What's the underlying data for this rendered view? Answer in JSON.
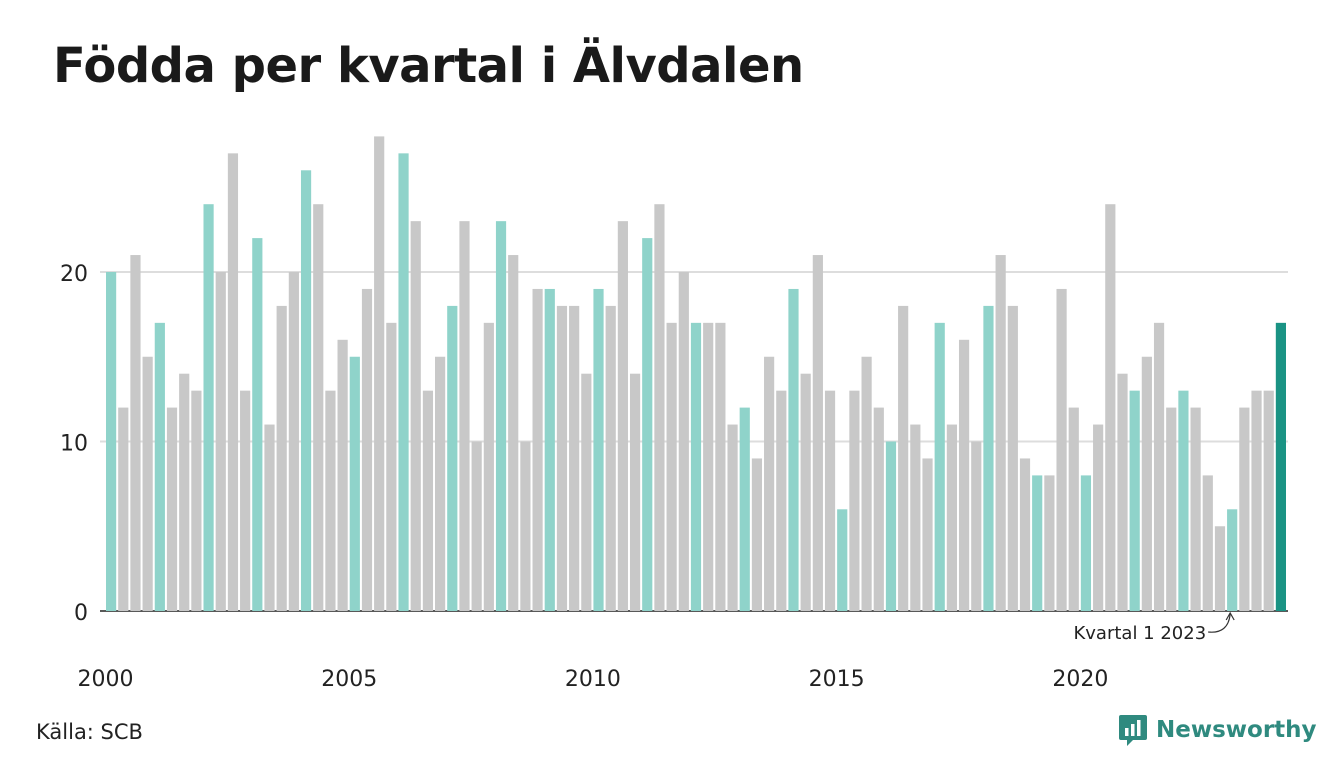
{
  "title": "Födda per kvartal i Älvdalen",
  "source": "Källa: SCB",
  "brand": {
    "name": "Newsworthy",
    "icon": "newsworthy-logo-icon"
  },
  "colors": {
    "q1": "#8fd3ca",
    "other": "#c8c8c8",
    "latest": "#1a9384",
    "grid": "#dddddd",
    "axis": "#222222"
  },
  "chart_data": {
    "type": "bar",
    "ylim": [
      0,
      28
    ],
    "yticks": [
      0,
      10,
      20
    ],
    "x_ticks": [
      {
        "label": "2000",
        "year": 2000
      },
      {
        "label": "2005",
        "year": 2005
      },
      {
        "label": "2010",
        "year": 2010
      },
      {
        "label": "2015",
        "year": 2015
      },
      {
        "label": "2020",
        "year": 2020
      }
    ],
    "start_year": 2000,
    "first_quarter_highlight": true,
    "values": [
      20,
      12,
      21,
      15,
      17,
      12,
      14,
      13,
      24,
      20,
      27,
      13,
      22,
      11,
      18,
      20,
      26,
      24,
      13,
      16,
      15,
      19,
      28,
      17,
      27,
      23,
      13,
      15,
      18,
      23,
      10,
      17,
      23,
      21,
      10,
      19,
      19,
      18,
      18,
      14,
      19,
      18,
      23,
      14,
      22,
      24,
      17,
      20,
      17,
      17,
      17,
      11,
      12,
      9,
      15,
      13,
      19,
      14,
      21,
      13,
      6,
      13,
      15,
      12,
      10,
      18,
      11,
      9,
      17,
      11,
      16,
      10,
      18,
      21,
      18,
      9,
      8,
      8,
      19,
      12,
      8,
      11,
      24,
      14,
      13,
      15,
      17,
      12,
      13,
      12,
      8,
      5,
      6,
      12,
      13,
      13,
      17
    ],
    "annotation": {
      "label": "Kvartal 1 2023",
      "quarter": "2023 Q1"
    }
  }
}
